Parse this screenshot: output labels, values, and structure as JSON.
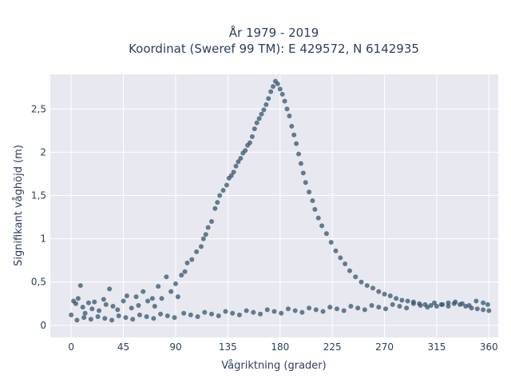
{
  "chart_data": {
    "type": "scatter",
    "title": "År 1979 - 2019",
    "subtitle": "Koordinat (Sweref 99 TM): E 429572, N 6142935",
    "xlabel": "Vågriktning (grader)",
    "ylabel": "Signifikant våghöjd (m)",
    "xlim": [
      -18,
      368
    ],
    "ylim": [
      -0.14,
      2.9
    ],
    "x_ticks": [
      0,
      45,
      90,
      135,
      180,
      225,
      270,
      315,
      360
    ],
    "x_tick_labels": [
      "0",
      "45",
      "90",
      "135",
      "180",
      "225",
      "270",
      "315",
      "360"
    ],
    "y_ticks": [
      0,
      0.5,
      1,
      1.5,
      2,
      2.5
    ],
    "y_tick_labels": [
      "0",
      "0,5",
      "1",
      "1,5",
      "2",
      "2,5"
    ],
    "grid": true,
    "colors": {
      "marker": "#34566d",
      "plot_background": "#e8e8f0",
      "grid": "#ffffff",
      "text": "#2a3f5f"
    },
    "series": [
      {
        "points": [
          [
            0,
            0.12
          ],
          [
            2,
            0.28
          ],
          [
            4,
            0.25
          ],
          [
            6,
            0.31
          ],
          [
            8,
            0.46
          ],
          [
            10,
            0.21
          ],
          [
            12,
            0.14
          ],
          [
            15,
            0.26
          ],
          [
            18,
            0.19
          ],
          [
            20,
            0.27
          ],
          [
            24,
            0.17
          ],
          [
            28,
            0.3
          ],
          [
            30,
            0.24
          ],
          [
            33,
            0.42
          ],
          [
            36,
            0.22
          ],
          [
            40,
            0.18
          ],
          [
            45,
            0.28
          ],
          [
            48,
            0.34
          ],
          [
            52,
            0.2
          ],
          [
            56,
            0.33
          ],
          [
            58,
            0.23
          ],
          [
            62,
            0.39
          ],
          [
            66,
            0.28
          ],
          [
            70,
            0.31
          ],
          [
            72,
            0.22
          ],
          [
            75,
            0.45
          ],
          [
            78,
            0.31
          ],
          [
            82,
            0.56
          ],
          [
            86,
            0.39
          ],
          [
            90,
            0.48
          ],
          [
            92,
            0.33
          ],
          [
            95,
            0.58
          ],
          [
            98,
            0.62
          ],
          [
            100,
            0.72
          ],
          [
            104,
            0.76
          ],
          [
            108,
            0.85
          ],
          [
            112,
            0.91
          ],
          [
            114,
            1.0
          ],
          [
            116,
            1.05
          ],
          [
            118,
            1.13
          ],
          [
            121,
            1.2
          ],
          [
            124,
            1.35
          ],
          [
            126,
            1.42
          ],
          [
            128,
            1.5
          ],
          [
            131,
            1.56
          ],
          [
            134,
            1.62
          ],
          [
            136,
            1.7
          ],
          [
            138,
            1.73
          ],
          [
            140,
            1.77
          ],
          [
            142,
            1.84
          ],
          [
            144,
            1.89
          ],
          [
            146,
            1.93
          ],
          [
            148,
            1.99
          ],
          [
            150,
            2.02
          ],
          [
            152,
            2.08
          ],
          [
            154,
            2.11
          ],
          [
            156,
            2.18
          ],
          [
            158,
            2.27
          ],
          [
            160,
            2.34
          ],
          [
            162,
            2.39
          ],
          [
            164,
            2.44
          ],
          [
            166,
            2.49
          ],
          [
            168,
            2.55
          ],
          [
            170,
            2.62
          ],
          [
            172,
            2.7
          ],
          [
            174,
            2.76
          ],
          [
            176,
            2.82
          ],
          [
            178,
            2.79
          ],
          [
            180,
            2.73
          ],
          [
            182,
            2.67
          ],
          [
            184,
            2.59
          ],
          [
            186,
            2.5
          ],
          [
            188,
            2.42
          ],
          [
            190,
            2.3
          ],
          [
            192,
            2.2
          ],
          [
            194,
            2.1
          ],
          [
            196,
            1.98
          ],
          [
            198,
            1.87
          ],
          [
            200,
            1.76
          ],
          [
            202,
            1.65
          ],
          [
            205,
            1.54
          ],
          [
            208,
            1.44
          ],
          [
            210,
            1.34
          ],
          [
            213,
            1.24
          ],
          [
            216,
            1.15
          ],
          [
            220,
            1.06
          ],
          [
            224,
            0.96
          ],
          [
            228,
            0.86
          ],
          [
            232,
            0.78
          ],
          [
            236,
            0.71
          ],
          [
            240,
            0.63
          ],
          [
            245,
            0.56
          ],
          [
            250,
            0.5
          ],
          [
            255,
            0.46
          ],
          [
            260,
            0.43
          ],
          [
            265,
            0.39
          ],
          [
            270,
            0.36
          ],
          [
            275,
            0.34
          ],
          [
            280,
            0.31
          ],
          [
            285,
            0.29
          ],
          [
            290,
            0.28
          ],
          [
            295,
            0.27
          ],
          [
            300,
            0.25
          ],
          [
            305,
            0.24
          ],
          [
            310,
            0.23
          ],
          [
            315,
            0.22
          ],
          [
            320,
            0.24
          ],
          [
            325,
            0.26
          ],
          [
            330,
            0.25
          ],
          [
            335,
            0.24
          ],
          [
            340,
            0.22
          ],
          [
            345,
            0.2
          ],
          [
            350,
            0.19
          ],
          [
            355,
            0.18
          ],
          [
            360,
            0.17
          ],
          [
            5,
            0.06
          ],
          [
            11,
            0.09
          ],
          [
            17,
            0.07
          ],
          [
            23,
            0.1
          ],
          [
            29,
            0.08
          ],
          [
            35,
            0.06
          ],
          [
            41,
            0.11
          ],
          [
            47,
            0.09
          ],
          [
            53,
            0.07
          ],
          [
            59,
            0.12
          ],
          [
            65,
            0.1
          ],
          [
            71,
            0.08
          ],
          [
            77,
            0.13
          ],
          [
            83,
            0.11
          ],
          [
            89,
            0.09
          ],
          [
            97,
            0.14
          ],
          [
            103,
            0.12
          ],
          [
            109,
            0.1
          ],
          [
            115,
            0.15
          ],
          [
            121,
            0.13
          ],
          [
            127,
            0.11
          ],
          [
            133,
            0.16
          ],
          [
            139,
            0.14
          ],
          [
            145,
            0.12
          ],
          [
            151,
            0.17
          ],
          [
            157,
            0.15
          ],
          [
            163,
            0.13
          ],
          [
            169,
            0.18
          ],
          [
            175,
            0.16
          ],
          [
            181,
            0.14
          ],
          [
            187,
            0.19
          ],
          [
            193,
            0.17
          ],
          [
            199,
            0.15
          ],
          [
            205,
            0.2
          ],
          [
            211,
            0.18
          ],
          [
            217,
            0.16
          ],
          [
            223,
            0.21
          ],
          [
            229,
            0.19
          ],
          [
            235,
            0.17
          ],
          [
            241,
            0.22
          ],
          [
            247,
            0.2
          ],
          [
            253,
            0.18
          ],
          [
            259,
            0.23
          ],
          [
            265,
            0.21
          ],
          [
            271,
            0.19
          ],
          [
            277,
            0.24
          ],
          [
            283,
            0.22
          ],
          [
            289,
            0.2
          ],
          [
            295,
            0.25
          ],
          [
            301,
            0.23
          ],
          [
            307,
            0.21
          ],
          [
            313,
            0.26
          ],
          [
            319,
            0.24
          ],
          [
            325,
            0.22
          ],
          [
            331,
            0.27
          ],
          [
            337,
            0.25
          ],
          [
            343,
            0.23
          ],
          [
            349,
            0.28
          ],
          [
            355,
            0.26
          ],
          [
            359,
            0.24
          ]
        ]
      }
    ]
  }
}
